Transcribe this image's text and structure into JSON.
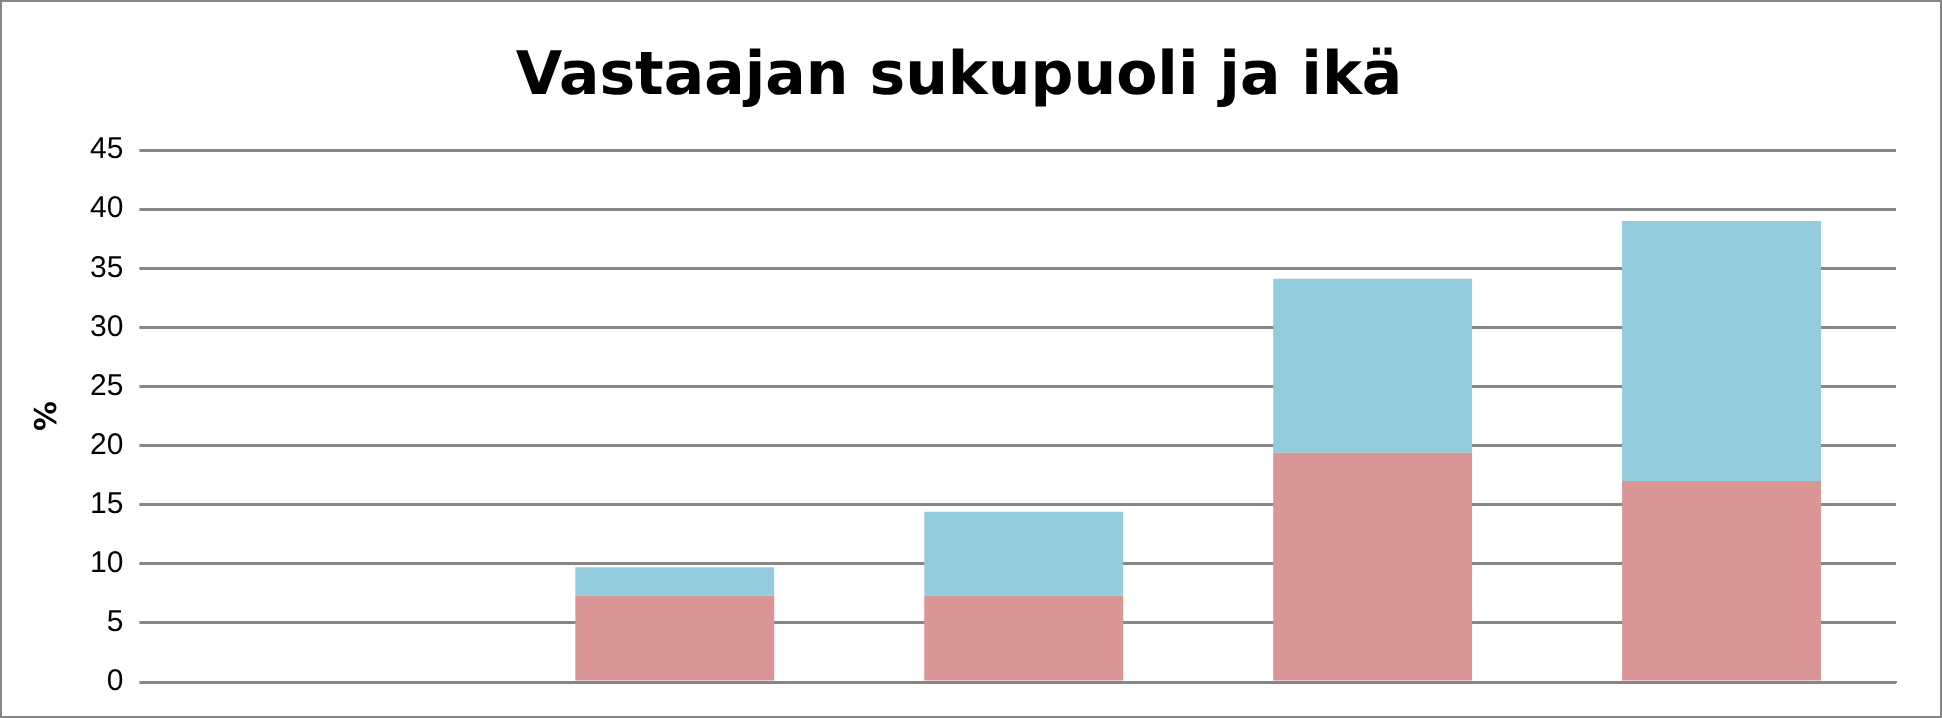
{
  "chart_data": {
    "type": "bar",
    "title": "Vastaajan sukupuoli ja ikä",
    "ylabel": "%",
    "categories": [
      null,
      null,
      null,
      null,
      null
    ],
    "stacked": true,
    "ylim": [
      0,
      45
    ],
    "yticks": [
      0,
      5,
      10,
      15,
      20,
      25,
      30,
      35,
      40,
      45
    ],
    "grid": "y",
    "legend": false,
    "series": [
      {
        "color": "#d99694",
        "values": [
          0,
          7.3,
          7.3,
          19.4,
          17.0
        ]
      },
      {
        "color": "#93cddd",
        "values": [
          0,
          2.4,
          7.1,
          14.7,
          22.0
        ]
      }
    ]
  }
}
